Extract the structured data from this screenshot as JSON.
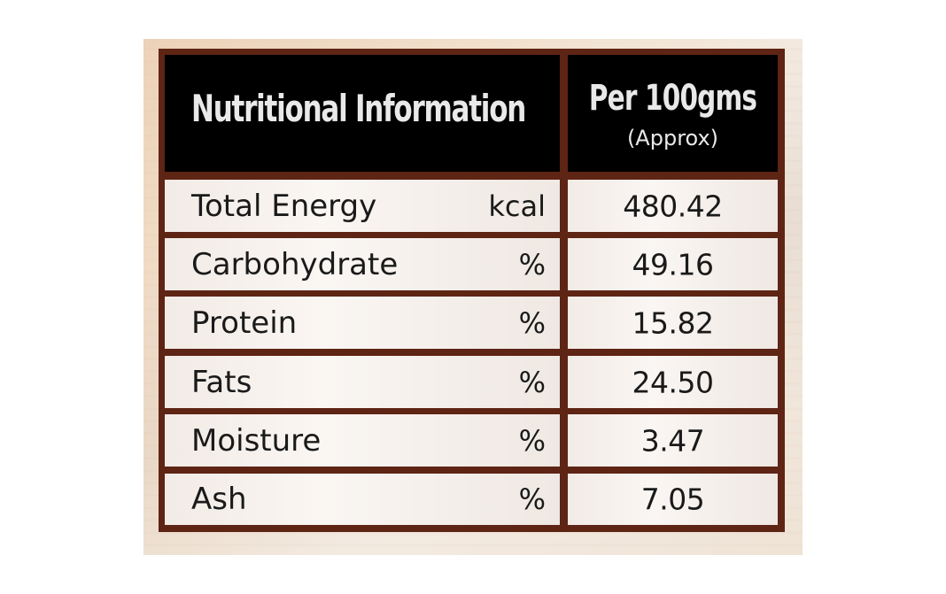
{
  "table": {
    "header": {
      "title": "Nutritional Information",
      "per_label": "Per 100gms",
      "approx_label": "(Approx)"
    },
    "rows": [
      {
        "nutrient": "Total Energy",
        "unit": "kcal",
        "value": "480.42"
      },
      {
        "nutrient": "Carbohydrate",
        "unit": "%",
        "value": "49.16"
      },
      {
        "nutrient": "Protein",
        "unit": "%",
        "value": "15.82"
      },
      {
        "nutrient": "Fats",
        "unit": "%",
        "value": "24.50"
      },
      {
        "nutrient": "Moisture",
        "unit": "%",
        "value": "3.47"
      },
      {
        "nutrient": "Ash",
        "unit": "%",
        "value": "7.05"
      }
    ]
  },
  "colors": {
    "frame": "#5e2414",
    "header_background": "#000000",
    "header_text": "#e9e9e9",
    "body_text": "#1a1a1a",
    "cell_background": "#f7f1ec"
  }
}
